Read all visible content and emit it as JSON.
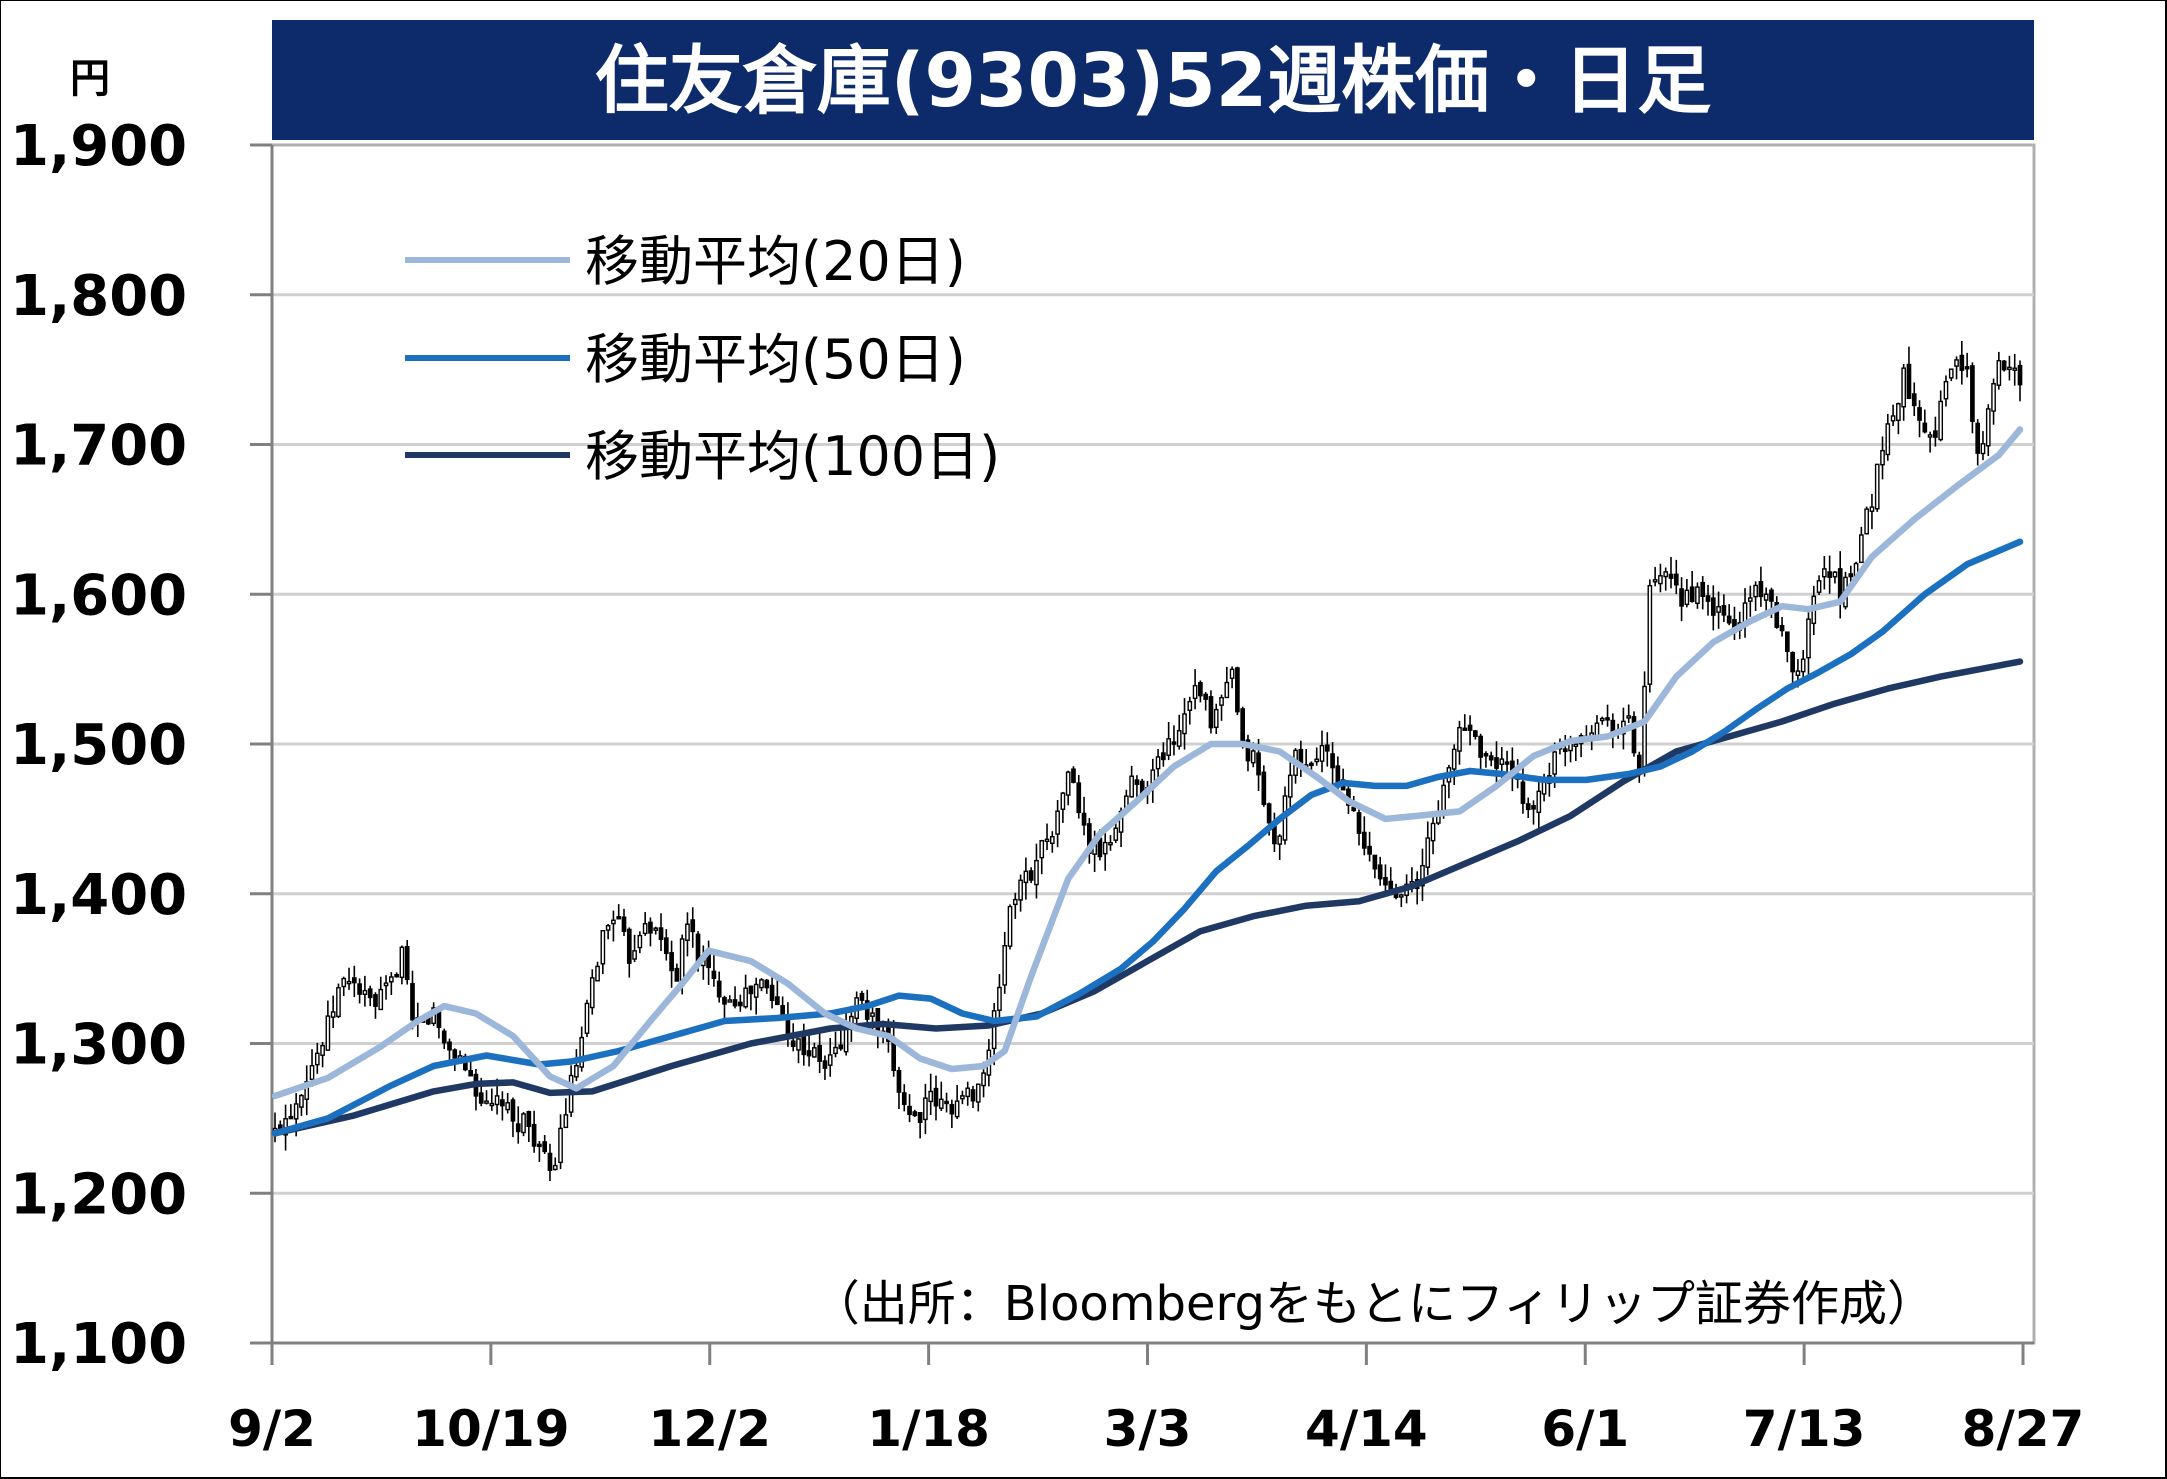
{
  "chart_data": {
    "type": "candlestick",
    "title": "住友倉庫(9303)52週株価・日足",
    "ylabel": "円",
    "ylim": [
      1100,
      1900
    ],
    "yticks": [
      1100,
      1200,
      1300,
      1400,
      1500,
      1600,
      1700,
      1800,
      1900
    ],
    "ytick_labels": [
      "1,100",
      "1,200",
      "1,300",
      "1,400",
      "1,500",
      "1,600",
      "1,700",
      "1,800",
      "1,900"
    ],
    "xtick_labels": [
      "9/2",
      "10/19",
      "12/2",
      "1/18",
      "3/3",
      "4/14",
      "6/1",
      "7/13",
      "8/27"
    ],
    "grid": true,
    "legend_position": "top-left",
    "source": "（出所：Bloombergをもとにフィリップ証券作成）",
    "price_anchors": [
      [
        0,
        1240
      ],
      [
        4,
        1262
      ],
      [
        6,
        1280
      ],
      [
        9,
        1300
      ],
      [
        12,
        1335
      ],
      [
        14,
        1345
      ],
      [
        17,
        1330
      ],
      [
        19,
        1325
      ],
      [
        22,
        1340
      ],
      [
        24,
        1362
      ],
      [
        26,
        1310
      ],
      [
        30,
        1320
      ],
      [
        32,
        1300
      ],
      [
        35,
        1290
      ],
      [
        37,
        1278
      ],
      [
        40,
        1255
      ],
      [
        43,
        1262
      ],
      [
        45,
        1245
      ],
      [
        47,
        1250
      ],
      [
        50,
        1232
      ],
      [
        52,
        1210
      ],
      [
        54,
        1240
      ],
      [
        56,
        1272
      ],
      [
        58,
        1300
      ],
      [
        60,
        1340
      ],
      [
        62,
        1372
      ],
      [
        64,
        1388
      ],
      [
        67,
        1358
      ],
      [
        70,
        1385
      ],
      [
        73,
        1368
      ],
      [
        76,
        1345
      ],
      [
        78,
        1382
      ],
      [
        80,
        1360
      ],
      [
        83,
        1340
      ],
      [
        86,
        1330
      ],
      [
        89,
        1332
      ],
      [
        92,
        1340
      ],
      [
        95,
        1325
      ],
      [
        98,
        1302
      ],
      [
        101,
        1295
      ],
      [
        104,
        1285
      ],
      [
        107,
        1300
      ],
      [
        110,
        1330
      ],
      [
        113,
        1315
      ],
      [
        116,
        1295
      ],
      [
        119,
        1260
      ],
      [
        121,
        1250
      ],
      [
        124,
        1262
      ],
      [
        127,
        1258
      ],
      [
        130,
        1262
      ],
      [
        133,
        1272
      ],
      [
        135,
        1292
      ],
      [
        137,
        1340
      ],
      [
        139,
        1392
      ],
      [
        141,
        1405
      ],
      [
        143,
        1415
      ],
      [
        146,
        1440
      ],
      [
        148,
        1450
      ],
      [
        150,
        1485
      ],
      [
        152,
        1455
      ],
      [
        154,
        1430
      ],
      [
        157,
        1428
      ],
      [
        159,
        1446
      ],
      [
        162,
        1475
      ],
      [
        164,
        1472
      ],
      [
        166,
        1480
      ],
      [
        168,
        1495
      ],
      [
        171,
        1510
      ],
      [
        173,
        1535
      ],
      [
        175,
        1538
      ],
      [
        177,
        1510
      ],
      [
        179,
        1530
      ],
      [
        181,
        1545
      ],
      [
        183,
        1495
      ],
      [
        185,
        1492
      ],
      [
        187,
        1462
      ],
      [
        189,
        1430
      ],
      [
        191,
        1460
      ],
      [
        193,
        1490
      ],
      [
        196,
        1485
      ],
      [
        198,
        1500
      ],
      [
        200,
        1480
      ],
      [
        202,
        1472
      ],
      [
        204,
        1450
      ],
      [
        206,
        1428
      ],
      [
        208,
        1418
      ],
      [
        210,
        1405
      ],
      [
        212,
        1402
      ],
      [
        214,
        1410
      ],
      [
        216,
        1400
      ],
      [
        218,
        1435
      ],
      [
        220,
        1460
      ],
      [
        222,
        1480
      ],
      [
        224,
        1512
      ],
      [
        226,
        1510
      ],
      [
        228,
        1498
      ],
      [
        230,
        1485
      ],
      [
        232,
        1490
      ],
      [
        234,
        1475
      ],
      [
        236,
        1465
      ],
      [
        238,
        1455
      ],
      [
        240,
        1478
      ],
      [
        242,
        1490
      ],
      [
        244,
        1500
      ],
      [
        246,
        1505
      ],
      [
        248,
        1510
      ],
      [
        250,
        1515
      ],
      [
        252,
        1518
      ],
      [
        254,
        1510
      ],
      [
        256,
        1515
      ],
      [
        258,
        1480
      ],
      [
        260,
        1600
      ],
      [
        262,
        1612
      ],
      [
        264,
        1605
      ],
      [
        266,
        1598
      ],
      [
        268,
        1602
      ],
      [
        270,
        1595
      ],
      [
        272,
        1590
      ],
      [
        274,
        1585
      ],
      [
        276,
        1575
      ],
      [
        278,
        1592
      ],
      [
        280,
        1605
      ],
      [
        282,
        1602
      ],
      [
        284,
        1575
      ],
      [
        286,
        1565
      ],
      [
        288,
        1545
      ],
      [
        290,
        1580
      ],
      [
        292,
        1615
      ],
      [
        294,
        1618
      ],
      [
        296,
        1600
      ],
      [
        298,
        1615
      ],
      [
        300,
        1640
      ],
      [
        302,
        1665
      ],
      [
        304,
        1700
      ],
      [
        306,
        1720
      ],
      [
        308,
        1745
      ],
      [
        310,
        1730
      ],
      [
        312,
        1712
      ],
      [
        314,
        1710
      ],
      [
        316,
        1740
      ],
      [
        318,
        1760
      ],
      [
        320,
        1745
      ],
      [
        322,
        1690
      ],
      [
        324,
        1720
      ],
      [
        326,
        1752
      ],
      [
        328,
        1758
      ],
      [
        330,
        1745
      ]
    ],
    "series": [
      {
        "name": "移動平均(20日)",
        "color": "#9cb7da",
        "x": [
          0,
          10,
          20,
          27,
          32,
          38,
          45,
          52,
          57,
          64,
          71,
          77,
          82,
          90,
          97,
          104,
          110,
          116,
          122,
          128,
          134,
          138,
          143,
          150,
          156,
          163,
          170,
          177,
          183,
          190,
          197,
          203,
          210,
          216,
          224,
          231,
          238,
          245,
          252,
          259,
          265,
          272,
          279,
          285,
          290,
          296,
          302,
          310,
          318,
          326,
          330
        ],
        "values": [
          1265,
          1277,
          1298,
          1315,
          1325,
          1320,
          1305,
          1278,
          1270,
          1285,
          1315,
          1340,
          1362,
          1355,
          1340,
          1320,
          1310,
          1305,
          1290,
          1283,
          1285,
          1295,
          1345,
          1410,
          1440,
          1462,
          1485,
          1500,
          1500,
          1495,
          1478,
          1462,
          1450,
          1452,
          1455,
          1472,
          1492,
          1502,
          1505,
          1515,
          1545,
          1568,
          1582,
          1592,
          1590,
          1595,
          1625,
          1650,
          1672,
          1693,
          1710
        ]
      },
      {
        "name": "移動平均(50日)",
        "color": "#1b70c0",
        "x": [
          0,
          10,
          22,
          30,
          40,
          50,
          56,
          65,
          75,
          85,
          95,
          105,
          112,
          118,
          124,
          130,
          136,
          144,
          152,
          160,
          166,
          172,
          178,
          184,
          190,
          196,
          202,
          208,
          214,
          220,
          226,
          232,
          240,
          248,
          256,
          262,
          268,
          274,
          280,
          286,
          292,
          298,
          304,
          312,
          320,
          330
        ],
        "values": [
          1240,
          1250,
          1272,
          1285,
          1292,
          1286,
          1288,
          1295,
          1305,
          1315,
          1317,
          1320,
          1325,
          1332,
          1330,
          1320,
          1315,
          1318,
          1333,
          1350,
          1368,
          1390,
          1415,
          1432,
          1450,
          1466,
          1474,
          1472,
          1472,
          1478,
          1482,
          1480,
          1476,
          1476,
          1480,
          1485,
          1495,
          1508,
          1523,
          1537,
          1548,
          1560,
          1575,
          1600,
          1620,
          1635
        ]
      },
      {
        "name": "移動平均(100日)",
        "color": "#1f3864",
        "x": [
          0,
          15,
          30,
          38,
          45,
          52,
          60,
          75,
          90,
          105,
          115,
          125,
          135,
          145,
          155,
          165,
          175,
          185,
          195,
          205,
          215,
          225,
          235,
          245,
          255,
          265,
          275,
          285,
          295,
          305,
          315,
          330
        ],
        "values": [
          1240,
          1252,
          1268,
          1273,
          1274,
          1267,
          1268,
          1285,
          1300,
          1310,
          1313,
          1310,
          1312,
          1320,
          1335,
          1355,
          1375,
          1385,
          1392,
          1395,
          1405,
          1420,
          1435,
          1452,
          1475,
          1495,
          1505,
          1515,
          1527,
          1537,
          1545,
          1555
        ]
      }
    ]
  }
}
